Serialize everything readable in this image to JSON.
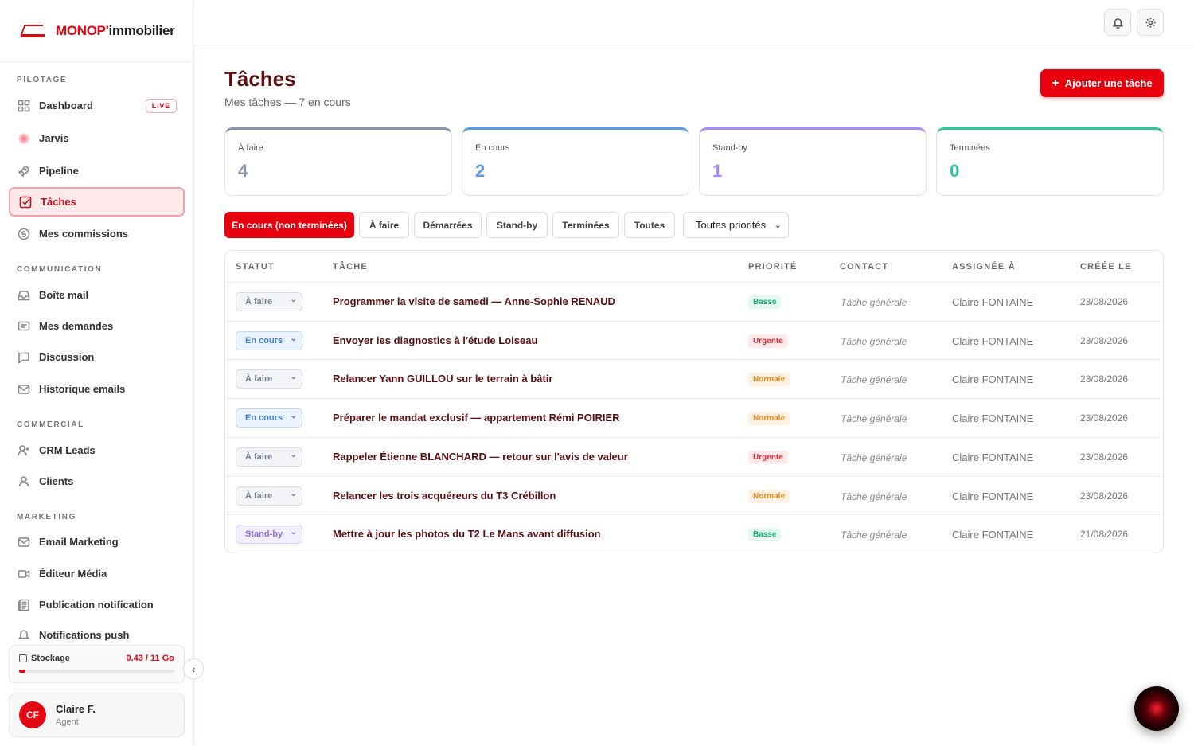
{
  "brand": {
    "name_part1": "MONOP'",
    "name_part2": "immobilier"
  },
  "sidebar": {
    "sections": {
      "pilotage": "PILOTAGE",
      "communication": "COMMUNICATION",
      "commercial": "COMMERCIAL",
      "marketing": "MARKETING"
    },
    "items": [
      {
        "label": "Dashboard",
        "icon": "grid-icon"
      },
      {
        "label": "Jarvis",
        "icon": "jarvis-icon"
      },
      {
        "label": "Pipeline",
        "icon": "rocket-icon"
      },
      {
        "label": "Tâches",
        "icon": "checkbox-icon"
      },
      {
        "label": "Mes commissions",
        "icon": "dollar-icon"
      },
      {
        "label": "Boîte mail",
        "icon": "inbox-icon"
      },
      {
        "label": "Mes demandes",
        "icon": "message-square-icon"
      },
      {
        "label": "Discussion",
        "icon": "chat-icon"
      },
      {
        "label": "Historique emails",
        "icon": "mail-icon"
      },
      {
        "label": "CRM Leads",
        "icon": "user-plus-icon"
      },
      {
        "label": "Clients",
        "icon": "user-icon"
      },
      {
        "label": "Email Marketing",
        "icon": "mail-icon"
      },
      {
        "label": "Éditeur Média",
        "icon": "video-icon"
      },
      {
        "label": "Publication notification",
        "icon": "newspaper-icon"
      },
      {
        "label": "Notifications push",
        "icon": "bell-icon"
      }
    ],
    "live_badge": "LIVE",
    "storage": {
      "label": "Stockage",
      "value": "0.43 / 11 Go",
      "fraction": 0.039
    },
    "user": {
      "initials": "CF",
      "name": "Claire F.",
      "role": "Agent"
    }
  },
  "page": {
    "title": "Tâches",
    "subtitle": "Mes tâches — 7 en cours",
    "add_button": "Ajouter une tâche"
  },
  "stats": [
    {
      "label": "À faire",
      "value": "4",
      "color": "#8a95a8"
    },
    {
      "label": "En cours",
      "value": "2",
      "color": "#5b9be6"
    },
    {
      "label": "Stand-by",
      "value": "1",
      "color": "#a78bfa"
    },
    {
      "label": "Terminées",
      "value": "0",
      "color": "#2cc79a"
    }
  ],
  "filters": [
    "En cours (non terminées)",
    "À faire",
    "Démarrées",
    "Stand-by",
    "Terminées",
    "Toutes"
  ],
  "priority_select": "Toutes priorités",
  "table": {
    "headers": [
      "STATUT",
      "TÂCHE",
      "PRIORITÉ",
      "CONTACT",
      "ASSIGNÉE À",
      "CRÉÉE LE"
    ],
    "rows": [
      {
        "status": "À faire",
        "task": "Programmer la visite de samedi — Anne-Sophie RENAUD",
        "priority": "Basse",
        "contact": "Tâche générale",
        "assignee": "Claire FONTAINE",
        "created": "23/08/2026"
      },
      {
        "status": "En cours",
        "task": "Envoyer les diagnostics à l'étude Loiseau",
        "priority": "Urgente",
        "contact": "Tâche générale",
        "assignee": "Claire FONTAINE",
        "created": "23/08/2026"
      },
      {
        "status": "À faire",
        "task": "Relancer Yann GUILLOU sur le terrain à bâtir",
        "priority": "Normale",
        "contact": "Tâche générale",
        "assignee": "Claire FONTAINE",
        "created": "23/08/2026"
      },
      {
        "status": "En cours",
        "task": "Préparer le mandat exclusif — appartement Rémi POIRIER",
        "priority": "Normale",
        "contact": "Tâche générale",
        "assignee": "Claire FONTAINE",
        "created": "23/08/2026"
      },
      {
        "status": "À faire",
        "task": "Rappeler Étienne BLANCHARD — retour sur l'avis de valeur",
        "priority": "Urgente",
        "contact": "Tâche générale",
        "assignee": "Claire FONTAINE",
        "created": "23/08/2026"
      },
      {
        "status": "À faire",
        "task": "Relancer les trois acquéreurs du T3 Crébillon",
        "priority": "Normale",
        "contact": "Tâche générale",
        "assignee": "Claire FONTAINE",
        "created": "23/08/2026"
      },
      {
        "status": "Stand-by",
        "task": "Mettre à jour les photos du T2 Le Mans avant diffusion",
        "priority": "Basse",
        "contact": "Tâche générale",
        "assignee": "Claire FONTAINE",
        "created": "21/08/2026"
      }
    ]
  },
  "colors": {
    "accent": "#e8000f",
    "title": "#5a0f12"
  }
}
